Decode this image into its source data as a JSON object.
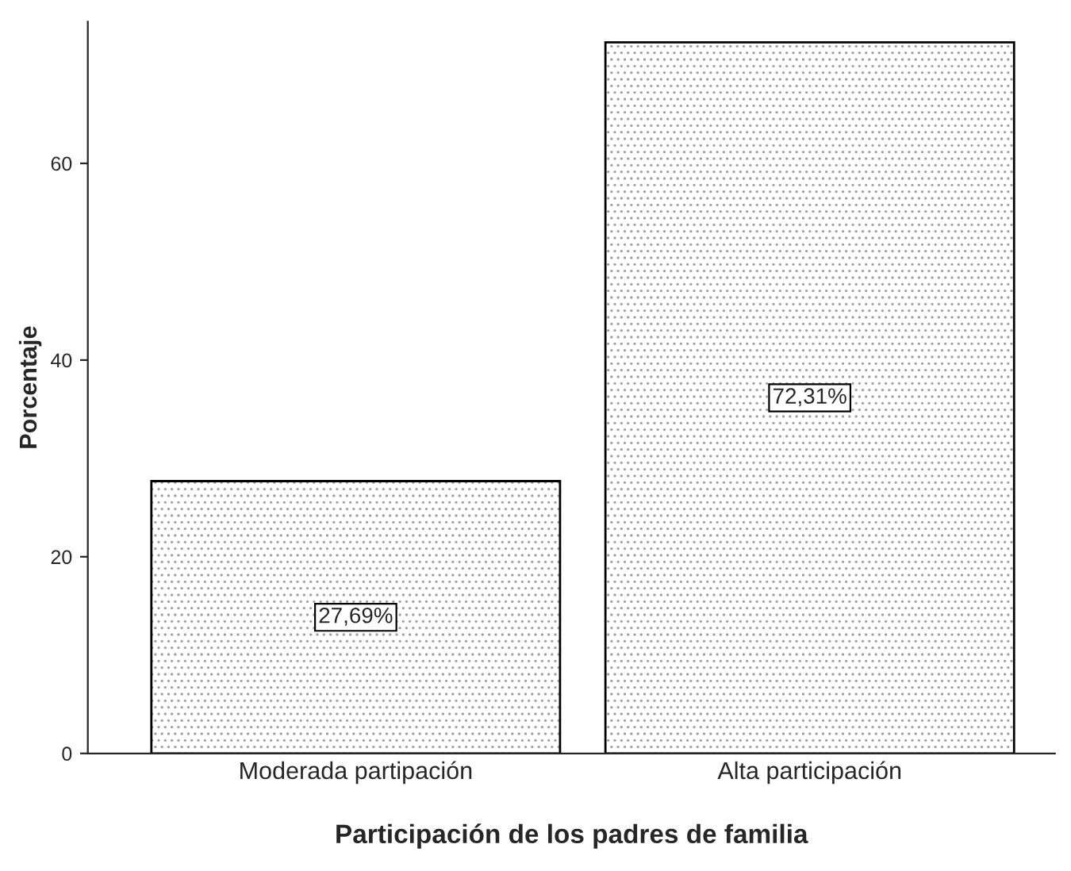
{
  "chart_data": {
    "type": "bar",
    "xlabel": "Participación de los padres de familia",
    "ylabel": "Porcentaje",
    "categories": [
      "Moderada partipación",
      "Alta participación"
    ],
    "values": [
      27.69,
      72.31
    ],
    "value_labels": [
      "27,69%",
      "72,31%"
    ],
    "ylim": [
      0,
      74.4
    ],
    "yticks": [
      0,
      20,
      40,
      60
    ],
    "grid": false,
    "legend": false
  }
}
